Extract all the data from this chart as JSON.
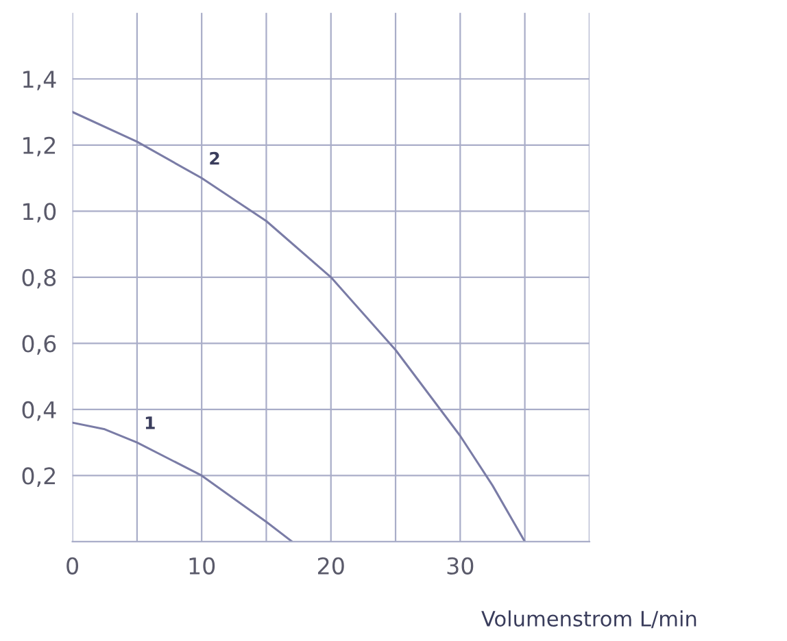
{
  "chart_data": {
    "type": "line",
    "xlabel": "Volumenstrom L/min",
    "series": [
      {
        "name": "1",
        "color": "#7a7ca6",
        "x": [
          0,
          2.5,
          5,
          7.5,
          10,
          12.5,
          15,
          17
        ],
        "values": [
          0.36,
          0.34,
          0.3,
          0.25,
          0.2,
          0.13,
          0.06,
          0
        ]
      },
      {
        "name": "2",
        "color": "#7a7ca6",
        "x": [
          0,
          5,
          10,
          15,
          20,
          25,
          30,
          32.5,
          35
        ],
        "values": [
          1.3,
          1.21,
          1.1,
          0.97,
          0.8,
          0.58,
          0.32,
          0.17,
          0
        ]
      }
    ],
    "xlim": [
      0,
      40
    ],
    "ylim": [
      0,
      1.6
    ],
    "xticks": [
      0,
      {
        "value": 5,
        "label": null
      },
      10,
      {
        "value": 15,
        "label": null
      },
      20,
      {
        "value": 25,
        "label": null
      },
      30,
      {
        "value": 35,
        "label": null
      },
      {
        "value": 40,
        "label": null
      }
    ],
    "yticks": [
      {
        "value": 0.2,
        "label": "0,2"
      },
      {
        "value": 0.4,
        "label": "0,4"
      },
      {
        "value": 0.6,
        "label": "0,6"
      },
      {
        "value": 0.8,
        "label": "0,8"
      },
      {
        "value": 1.0,
        "label": "1,0"
      },
      {
        "value": 1.2,
        "label": "1,2"
      },
      {
        "value": 1.4,
        "label": "1,4"
      }
    ],
    "grid": true,
    "legend": false,
    "marker": "none",
    "line_style": "solid"
  }
}
